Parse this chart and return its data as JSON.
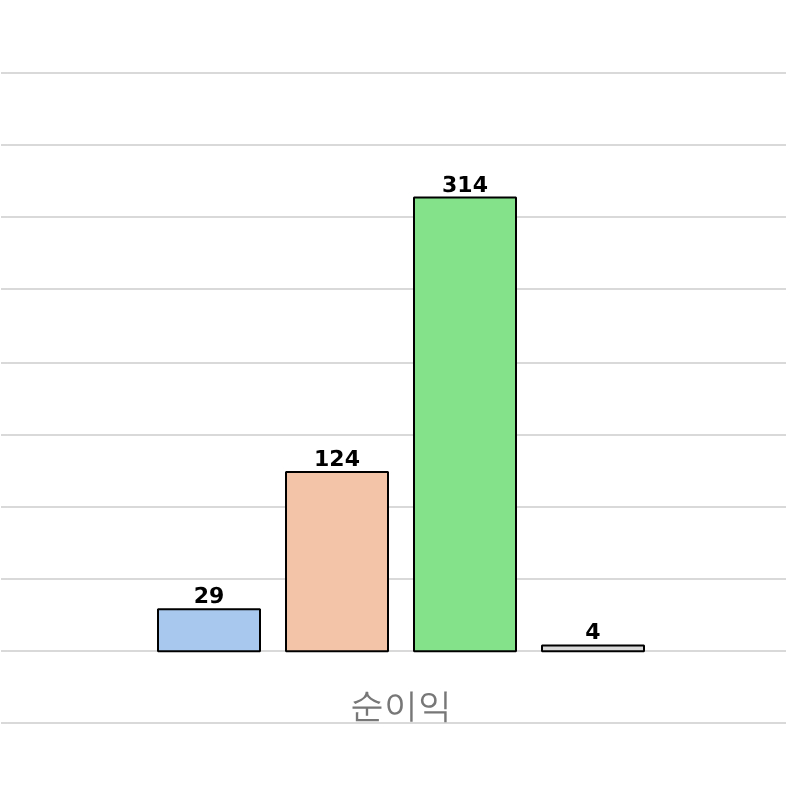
{
  "chart_data": {
    "type": "bar",
    "xlabel": "순이익",
    "categories": [
      null,
      null,
      null,
      null
    ],
    "values": [
      29,
      124,
      314,
      4
    ],
    "colors": [
      "#a9c8ee",
      "#f4c4a8",
      "#84e28a",
      "#d9d9d9"
    ],
    "ylim": [
      -94,
      450
    ],
    "yticks": [
      {
        "value": -50,
        "label": null
      },
      {
        "value": 0,
        "label": null
      },
      {
        "value": 50,
        "label": null
      },
      {
        "value": 100,
        "label": null
      },
      {
        "value": 150,
        "label": null
      },
      {
        "value": 200,
        "label": null
      },
      {
        "value": 250,
        "label": null
      },
      {
        "value": 300,
        "label": null
      },
      {
        "value": 350,
        "label": null
      },
      {
        "value": 400,
        "label": null
      }
    ],
    "tick_labels": false,
    "grid": "y",
    "data_labels": true
  }
}
